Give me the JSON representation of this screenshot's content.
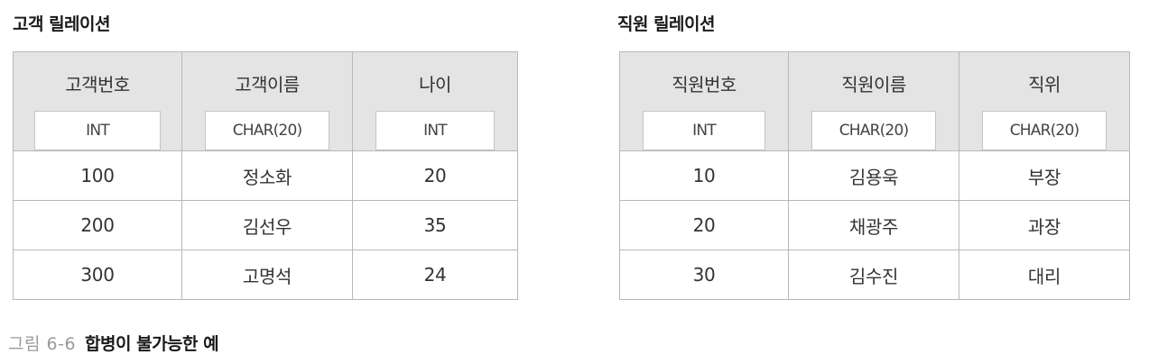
{
  "left_relation": {
    "title": "고객 릴레이션",
    "columns": [
      {
        "name": "고객번호",
        "type": "INT"
      },
      {
        "name": "고객이름",
        "type": "CHAR(20)"
      },
      {
        "name": "나이",
        "type": "INT"
      }
    ],
    "rows": [
      [
        "100",
        "정소화",
        "20"
      ],
      [
        "200",
        "김선우",
        "35"
      ],
      [
        "300",
        "고명석",
        "24"
      ]
    ]
  },
  "right_relation": {
    "title": "직원 릴레이션",
    "columns": [
      {
        "name": "직원번호",
        "type": "INT"
      },
      {
        "name": "직원이름",
        "type": "CHAR(20)"
      },
      {
        "name": "직위",
        "type": "CHAR(20)"
      }
    ],
    "rows": [
      [
        "10",
        "김용욱",
        "부장"
      ],
      [
        "20",
        "채광주",
        "과장"
      ],
      [
        "30",
        "김수진",
        "대리"
      ]
    ]
  },
  "caption": {
    "label": "그림 6-6",
    "text": "합병이 불가능한 예"
  }
}
